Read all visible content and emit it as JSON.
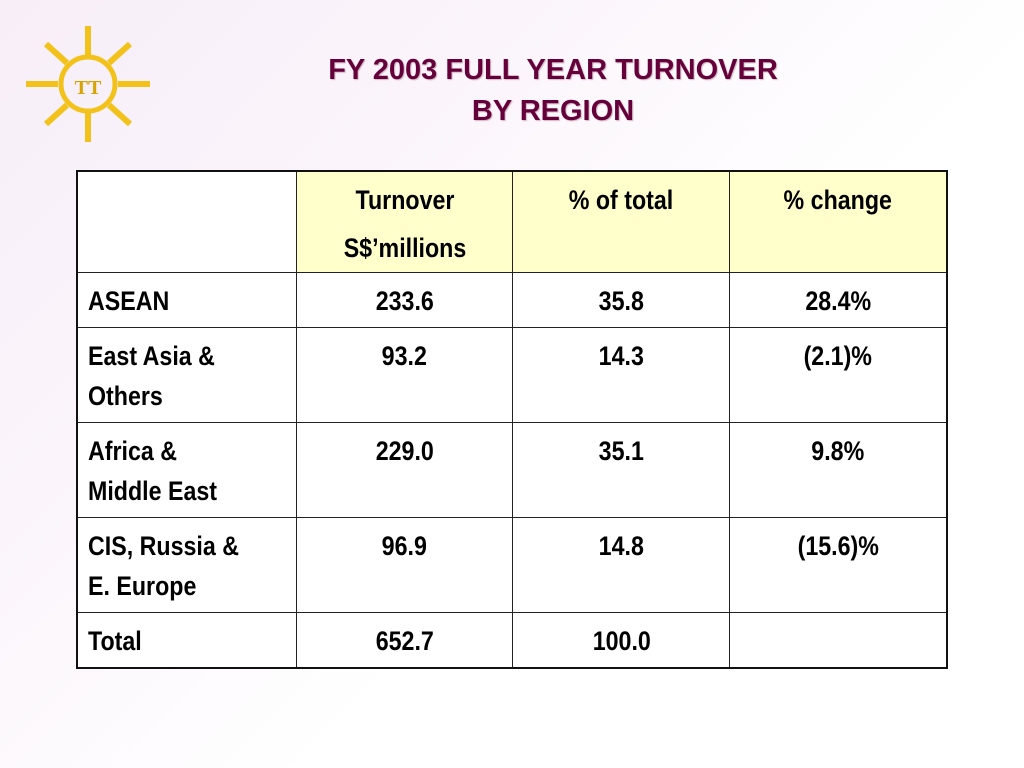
{
  "logo": {
    "text": "TT",
    "icon": "sun-icon",
    "sun_color": "#f2c21b",
    "text_color": "#d9a400"
  },
  "title": {
    "line1": "FY 2003 FULL YEAR TURNOVER",
    "line2": "BY REGION",
    "color": "#66003a"
  },
  "table": {
    "header_bg": "#ffffcc",
    "columns": [
      {
        "line1": "",
        "line2": ""
      },
      {
        "line1": "Turnover",
        "line2": "S$’millions"
      },
      {
        "line1": "% of total",
        "line2": ""
      },
      {
        "line1": "% change",
        "line2": ""
      }
    ],
    "rows": [
      {
        "label1": "ASEAN",
        "label2": "",
        "turnover": "233.6",
        "pct_total": "35.8",
        "pct_change": "28.4%"
      },
      {
        "label1": "East Asia &",
        "label2": "Others",
        "turnover": "93.2",
        "pct_total": "14.3",
        "pct_change": "(2.1)%"
      },
      {
        "label1": "Africa &",
        "label2": "Middle East",
        "turnover": "229.0",
        "pct_total": "35.1",
        "pct_change": "9.8%"
      },
      {
        "label1": "CIS, Russia &",
        "label2": "E. Europe",
        "turnover": "96.9",
        "pct_total": "14.8",
        "pct_change": "(15.6)%"
      },
      {
        "label1": "Total",
        "label2": "",
        "turnover": "652.7",
        "pct_total": "100.0",
        "pct_change": ""
      }
    ]
  }
}
